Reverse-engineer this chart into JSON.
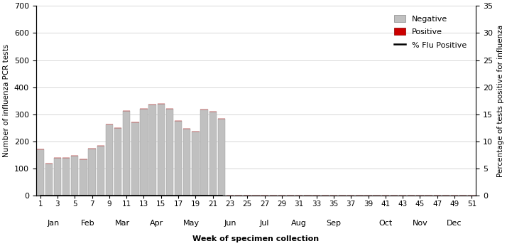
{
  "weeks": [
    1,
    2,
    3,
    4,
    5,
    6,
    7,
    8,
    9,
    10,
    11,
    12,
    13,
    14,
    15,
    16,
    17,
    18,
    19,
    20,
    21,
    22,
    23,
    24,
    25,
    26,
    27,
    28,
    29,
    30,
    31,
    32,
    33,
    34,
    35,
    36,
    37,
    38,
    39,
    40,
    41,
    42,
    43,
    44,
    45,
    46,
    47,
    48,
    49,
    50,
    51
  ],
  "negative_values": [
    170,
    118,
    140,
    140,
    147,
    135,
    175,
    183,
    262,
    250,
    312,
    271,
    320,
    335,
    340,
    320,
    275,
    247,
    237,
    318,
    310,
    283,
    0,
    0,
    0,
    0,
    0,
    0,
    0,
    0,
    0,
    0,
    0,
    0,
    0,
    0,
    0,
    0,
    0,
    0,
    0,
    0,
    0,
    0,
    0,
    0,
    0,
    0,
    0,
    0,
    0
  ],
  "positive_values": [
    0,
    0,
    0,
    0,
    0,
    0,
    0,
    0,
    0,
    0,
    0,
    0,
    0,
    0,
    0,
    0,
    0,
    0,
    0,
    0,
    0,
    0,
    0,
    0,
    0,
    0,
    0,
    0,
    0,
    0,
    0,
    0,
    0,
    0,
    0,
    0,
    0,
    0,
    0,
    0,
    0,
    0,
    0,
    0,
    0,
    0,
    0,
    0,
    0,
    0,
    0
  ],
  "flu_positive_pct": [
    0,
    0,
    0,
    0,
    0,
    0,
    0,
    0,
    0,
    0,
    0,
    0,
    0,
    0,
    0,
    0,
    0,
    0,
    0,
    0,
    0,
    0,
    0,
    0,
    0,
    0,
    0,
    0,
    0,
    0,
    0,
    0,
    0,
    0,
    0,
    0,
    0,
    0,
    0,
    0,
    0,
    0,
    0,
    0,
    0,
    0,
    0,
    0,
    0,
    0,
    0
  ],
  "bar_color_negative": "#c0c0c0",
  "bar_color_positive": "#cc0000",
  "line_color": "#000000",
  "xlabel": "Week of specimen collection",
  "ylabel_left": "Number of influenza PCR tests",
  "ylabel_right": "Percentage of tests positive for influenza",
  "ylim_left": [
    0,
    700
  ],
  "ylim_right": [
    0,
    35
  ],
  "yticks_left": [
    0,
    100,
    200,
    300,
    400,
    500,
    600,
    700
  ],
  "yticks_right": [
    0,
    5,
    10,
    15,
    20,
    25,
    30,
    35
  ],
  "odd_weeks": [
    1,
    3,
    5,
    7,
    9,
    11,
    13,
    15,
    17,
    19,
    21,
    23,
    25,
    27,
    29,
    31,
    33,
    35,
    37,
    39,
    41,
    43,
    45,
    47,
    49,
    51
  ],
  "month_labels": [
    "Jan",
    "Feb",
    "Mar",
    "Apr",
    "May",
    "Jun",
    "Jul",
    "Aug",
    "Sep",
    "Oct",
    "Nov",
    "Dec"
  ],
  "month_positions": [
    2.5,
    6.5,
    10.5,
    14.5,
    18.5,
    23,
    27,
    31,
    35,
    41,
    45,
    49
  ],
  "legend_negative": "Negative",
  "legend_positive": "Positive",
  "legend_line": "% Flu Positive",
  "background_color": "#ffffff",
  "gridcolor": "#d0d0d0",
  "xlim": [
    0.5,
    51.5
  ]
}
